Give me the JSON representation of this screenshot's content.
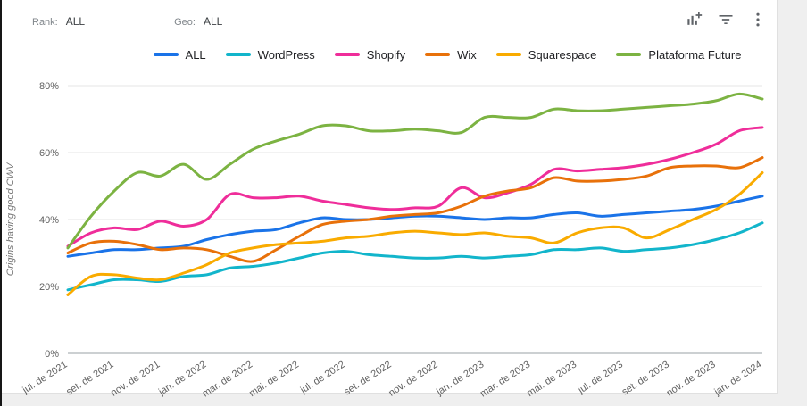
{
  "toolbar": {
    "rank_label": "Rank:",
    "rank_value": "ALL",
    "geo_label": "Geo:",
    "geo_value": "ALL",
    "icon_names": [
      "add-chart-icon",
      "filter-icon",
      "more-options-icon"
    ],
    "icon_color": "#5f6368"
  },
  "chart_data": {
    "type": "line",
    "title": "",
    "ylabel": "Origins having good CWV",
    "ylim": [
      0,
      80
    ],
    "y_tick_values": [
      0,
      20,
      40,
      60,
      80
    ],
    "y_tick_labels": [
      "0%",
      "20%",
      "40%",
      "60%",
      "80%"
    ],
    "x_tick_labels": [
      "jul. de 2021",
      "set. de 2021",
      "nov. de 2021",
      "jan. de 2022",
      "mar. de 2022",
      "mai. de 2022",
      "jul. de 2022",
      "set. de 2022",
      "nov. de 2022",
      "jan. de 2023",
      "mar. de 2023",
      "mai. de 2023",
      "jul. de 2023",
      "set. de 2023",
      "nov. de 2023",
      "jan. de 2024"
    ],
    "x_tick_every_n_points": 2,
    "grid": true,
    "legend_position": "top",
    "series": [
      {
        "name": "ALL",
        "color": "#1a73e8",
        "values": [
          29,
          30,
          31,
          31,
          31.5,
          32,
          34,
          35.5,
          36.5,
          37,
          39,
          40.5,
          40,
          40,
          40.5,
          41,
          41,
          40.5,
          40,
          40.5,
          40.5,
          41.5,
          42,
          41,
          41.5,
          42,
          42.5,
          43,
          44,
          45.5,
          47
        ]
      },
      {
        "name": "WordPress",
        "color": "#12b5cb",
        "values": [
          19,
          20.5,
          22,
          22,
          21.5,
          23,
          23.5,
          25.5,
          26,
          27,
          28.5,
          30,
          30.5,
          29.5,
          29,
          28.5,
          28.5,
          29,
          28.5,
          29,
          29.5,
          31,
          31,
          31.5,
          30.5,
          31,
          31.5,
          32.5,
          34,
          36,
          39
        ]
      },
      {
        "name": "Shopify",
        "color": "#ef2d9a",
        "values": [
          32,
          36,
          37.5,
          37,
          39.5,
          38,
          40,
          47.5,
          46.5,
          46.5,
          47,
          45.5,
          44.5,
          43.5,
          43,
          43.5,
          44,
          49.5,
          46.5,
          48,
          50.5,
          55,
          54.5,
          55,
          55.5,
          56.5,
          58,
          60,
          62.5,
          66.5,
          67.5
        ]
      },
      {
        "name": "Wix",
        "color": "#e8710a",
        "values": [
          30,
          33,
          33.5,
          32.5,
          31,
          31.5,
          31,
          29,
          27.5,
          31,
          35,
          38.5,
          39.5,
          40,
          41,
          41.5,
          42,
          44,
          47,
          48.5,
          49.5,
          52.5,
          51.5,
          51.5,
          52,
          53,
          55.5,
          56,
          56,
          55.5,
          58.5
        ]
      },
      {
        "name": "Squarespace",
        "color": "#f9ab00",
        "values": [
          17.5,
          23,
          23.5,
          22.5,
          22,
          24,
          26.5,
          30,
          31.5,
          32.5,
          33,
          33.5,
          34.5,
          35,
          36,
          36.5,
          36,
          35.5,
          36,
          35,
          34.5,
          33,
          36,
          37.5,
          37.5,
          34.5,
          37,
          40,
          43,
          47.5,
          54
        ]
      },
      {
        "name": "Plataforma Future",
        "color": "#7cb342",
        "values": [
          31.5,
          41,
          48.5,
          54,
          53,
          56.5,
          52,
          56.5,
          61,
          63.5,
          65.5,
          68,
          68,
          66.5,
          66.5,
          67,
          66.5,
          66,
          70.5,
          70.5,
          70.5,
          73,
          72.5,
          72.5,
          73,
          73.5,
          74,
          74.5,
          75.5,
          77.5,
          76
        ]
      }
    ]
  }
}
